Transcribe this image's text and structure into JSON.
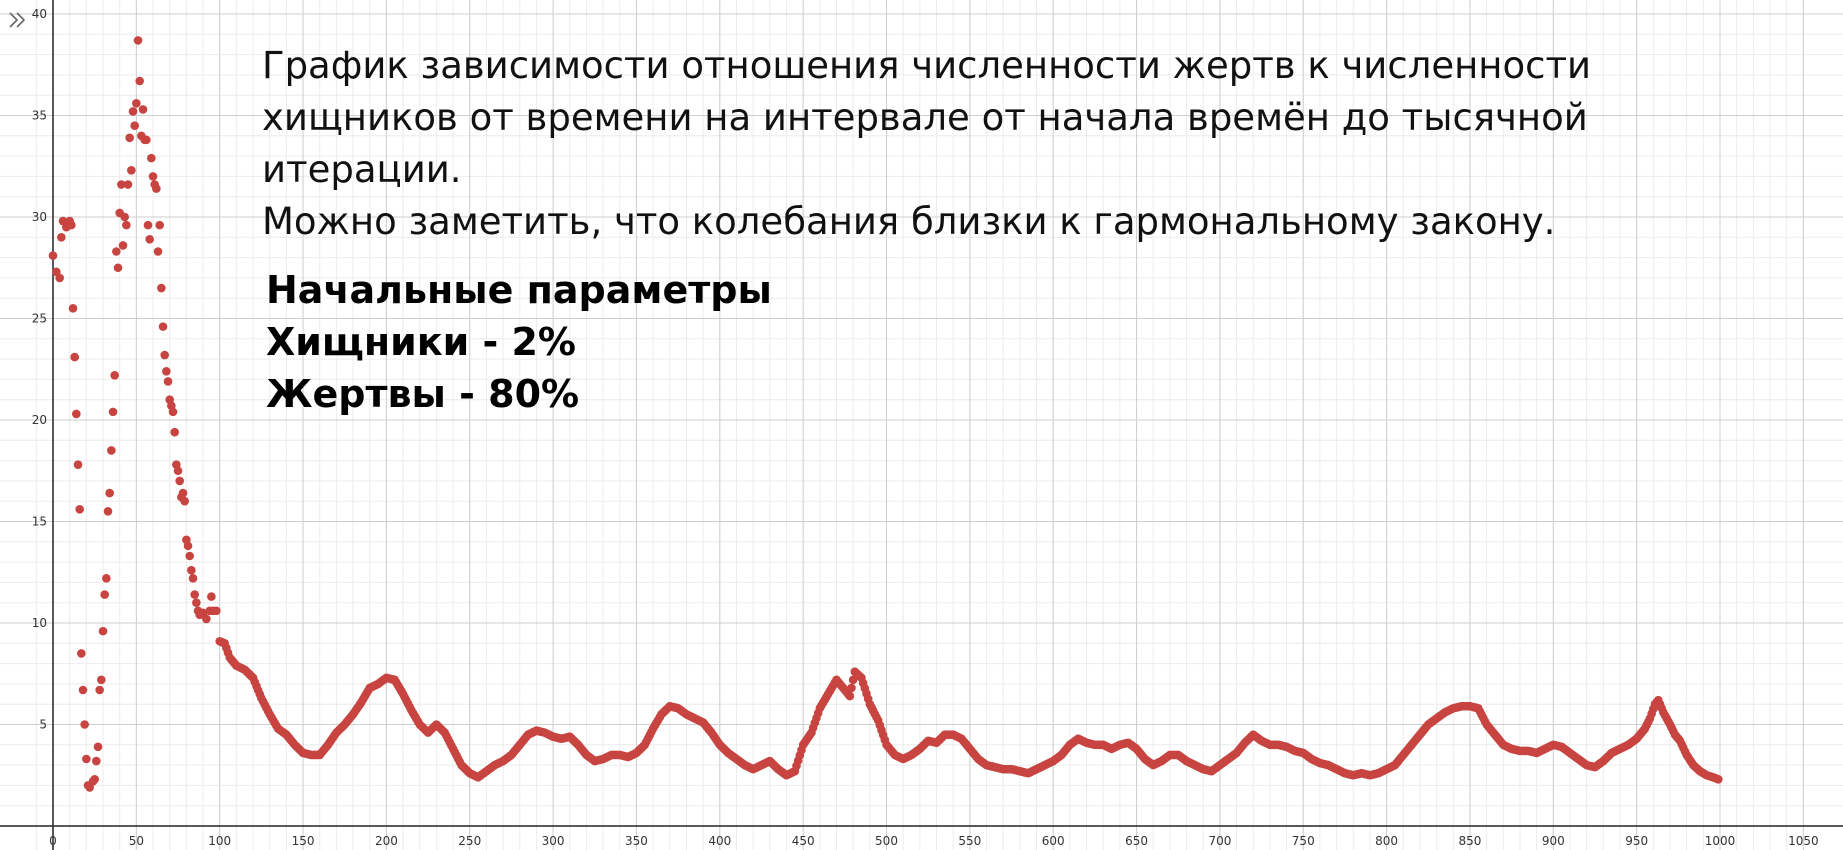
{
  "annotation": {
    "description_lines": [
      "График зависимости отношения численности жертв к численности",
      "хищников от времени на интервале от начала времён до тысячной",
      "итерации.",
      "Можно заметить, что колебания близки к гармональному закону."
    ],
    "params_title": "Начальные параметры",
    "predators": "Хищники - 2%",
    "prey": "Жертвы - 80%"
  },
  "toolbar": {
    "expand_icon": "double-chevron-right-icon"
  },
  "colors": {
    "points": "#c74440",
    "grid_major": "#cfcfcf",
    "grid_minor": "#ececec",
    "axis": "#222222"
  },
  "chart_data": {
    "type": "scatter",
    "xlim": [
      0,
      1050
    ],
    "ylim": [
      0,
      40
    ],
    "x_ticks": [
      0,
      50,
      100,
      150,
      200,
      250,
      300,
      350,
      400,
      450,
      500,
      550,
      600,
      650,
      700,
      750,
      800,
      850,
      900,
      950,
      1000,
      1050
    ],
    "y_ticks": [
      5,
      10,
      15,
      20,
      25,
      30,
      35,
      40
    ],
    "grid": true,
    "series": [
      {
        "points": [
          [
            0,
            28.1
          ],
          [
            2,
            27.3
          ],
          [
            4,
            27.0
          ],
          [
            5,
            29.0
          ],
          [
            6,
            29.8
          ],
          [
            8,
            29.5
          ],
          [
            10,
            29.8
          ],
          [
            11,
            29.6
          ],
          [
            12,
            25.5
          ],
          [
            13,
            23.1
          ],
          [
            14,
            20.3
          ],
          [
            15,
            17.8
          ],
          [
            16,
            15.6
          ],
          [
            17,
            8.5
          ],
          [
            18,
            6.7
          ],
          [
            19,
            5.0
          ],
          [
            20,
            3.3
          ],
          [
            21,
            2.0
          ],
          [
            22,
            1.9
          ],
          [
            24,
            2.2
          ],
          [
            25,
            2.3
          ],
          [
            26,
            3.2
          ],
          [
            27,
            3.9
          ],
          [
            28,
            6.7
          ],
          [
            29,
            7.2
          ],
          [
            30,
            9.6
          ],
          [
            31,
            11.4
          ],
          [
            32,
            12.2
          ],
          [
            33,
            15.5
          ],
          [
            34,
            16.4
          ],
          [
            35,
            18.5
          ],
          [
            36,
            20.4
          ],
          [
            37,
            22.2
          ],
          [
            38,
            28.3
          ],
          [
            39,
            27.5
          ],
          [
            40,
            30.2
          ],
          [
            41,
            31.6
          ],
          [
            42,
            28.6
          ],
          [
            43,
            30.0
          ],
          [
            44,
            29.6
          ],
          [
            45,
            31.6
          ],
          [
            46,
            33.9
          ],
          [
            47,
            32.3
          ],
          [
            48,
            35.2
          ],
          [
            49,
            34.5
          ],
          [
            50,
            35.6
          ],
          [
            51,
            38.7
          ],
          [
            52,
            36.7
          ],
          [
            53,
            34.0
          ],
          [
            54,
            35.3
          ],
          [
            55,
            33.8
          ],
          [
            56,
            33.8
          ],
          [
            57,
            29.6
          ],
          [
            58,
            28.9
          ],
          [
            59,
            32.9
          ],
          [
            60,
            32.0
          ],
          [
            61,
            31.6
          ],
          [
            62,
            31.4
          ],
          [
            63,
            28.3
          ],
          [
            64,
            29.6
          ],
          [
            65,
            26.5
          ],
          [
            66,
            24.6
          ],
          [
            67,
            23.2
          ],
          [
            68,
            22.4
          ],
          [
            69,
            21.9
          ],
          [
            70,
            21.0
          ],
          [
            71,
            20.7
          ],
          [
            72,
            20.4
          ],
          [
            73,
            19.4
          ],
          [
            74,
            17.8
          ],
          [
            75,
            17.5
          ],
          [
            76,
            17.0
          ],
          [
            77,
            16.2
          ],
          [
            78,
            16.4
          ],
          [
            79,
            16.0
          ],
          [
            80,
            14.1
          ],
          [
            81,
            13.8
          ],
          [
            82,
            13.3
          ],
          [
            83,
            12.6
          ],
          [
            84,
            12.2
          ],
          [
            85,
            11.4
          ],
          [
            86,
            11.0
          ],
          [
            87,
            10.6
          ],
          [
            88,
            10.4
          ],
          [
            90,
            10.5
          ],
          [
            92,
            10.2
          ],
          [
            94,
            10.6
          ],
          [
            95,
            11.3
          ],
          [
            96,
            10.6
          ],
          [
            98,
            10.6
          ],
          [
            100,
            9.1
          ],
          [
            103,
            9.0
          ],
          [
            106,
            8.3
          ],
          [
            110,
            7.9
          ],
          [
            115,
            7.7
          ],
          [
            120,
            7.3
          ],
          [
            125,
            6.3
          ],
          [
            130,
            5.5
          ],
          [
            135,
            4.8
          ],
          [
            140,
            4.5
          ],
          [
            145,
            4.0
          ],
          [
            150,
            3.6
          ],
          [
            155,
            3.5
          ],
          [
            160,
            3.5
          ],
          [
            165,
            4.0
          ],
          [
            170,
            4.6
          ],
          [
            175,
            5.0
          ],
          [
            180,
            5.5
          ],
          [
            185,
            6.1
          ],
          [
            190,
            6.8
          ],
          [
            195,
            7.0
          ],
          [
            200,
            7.3
          ],
          [
            205,
            7.2
          ],
          [
            210,
            6.5
          ],
          [
            215,
            5.7
          ],
          [
            220,
            5.0
          ],
          [
            225,
            4.6
          ],
          [
            230,
            5.0
          ],
          [
            235,
            4.6
          ],
          [
            240,
            3.8
          ],
          [
            245,
            3.0
          ],
          [
            250,
            2.6
          ],
          [
            255,
            2.4
          ],
          [
            260,
            2.7
          ],
          [
            265,
            3.0
          ],
          [
            270,
            3.2
          ],
          [
            275,
            3.5
          ],
          [
            280,
            4.0
          ],
          [
            285,
            4.5
          ],
          [
            290,
            4.7
          ],
          [
            295,
            4.6
          ],
          [
            300,
            4.4
          ],
          [
            305,
            4.3
          ],
          [
            310,
            4.4
          ],
          [
            315,
            4.0
          ],
          [
            320,
            3.5
          ],
          [
            325,
            3.2
          ],
          [
            330,
            3.3
          ],
          [
            335,
            3.5
          ],
          [
            340,
            3.5
          ],
          [
            345,
            3.4
          ],
          [
            350,
            3.6
          ],
          [
            355,
            4.0
          ],
          [
            360,
            4.8
          ],
          [
            365,
            5.5
          ],
          [
            370,
            5.9
          ],
          [
            375,
            5.8
          ],
          [
            380,
            5.5
          ],
          [
            385,
            5.3
          ],
          [
            390,
            5.1
          ],
          [
            395,
            4.6
          ],
          [
            400,
            4.0
          ],
          [
            405,
            3.6
          ],
          [
            410,
            3.3
          ],
          [
            415,
            3.0
          ],
          [
            420,
            2.8
          ],
          [
            425,
            3.0
          ],
          [
            430,
            3.2
          ],
          [
            435,
            2.8
          ],
          [
            440,
            2.5
          ],
          [
            445,
            2.7
          ],
          [
            450,
            4.0
          ],
          [
            455,
            4.6
          ],
          [
            460,
            5.8
          ],
          [
            465,
            6.5
          ],
          [
            470,
            7.2
          ],
          [
            475,
            6.7
          ],
          [
            478,
            6.4
          ],
          [
            481,
            7.6
          ],
          [
            485,
            7.3
          ],
          [
            490,
            6.0
          ],
          [
            495,
            5.2
          ],
          [
            500,
            4.0
          ],
          [
            505,
            3.5
          ],
          [
            510,
            3.3
          ],
          [
            515,
            3.5
          ],
          [
            520,
            3.8
          ],
          [
            525,
            4.2
          ],
          [
            530,
            4.1
          ],
          [
            535,
            4.5
          ],
          [
            540,
            4.5
          ],
          [
            545,
            4.3
          ],
          [
            550,
            3.8
          ],
          [
            555,
            3.3
          ],
          [
            560,
            3.0
          ],
          [
            565,
            2.9
          ],
          [
            570,
            2.8
          ],
          [
            575,
            2.8
          ],
          [
            580,
            2.7
          ],
          [
            585,
            2.6
          ],
          [
            590,
            2.8
          ],
          [
            595,
            3.0
          ],
          [
            600,
            3.2
          ],
          [
            605,
            3.5
          ],
          [
            610,
            4.0
          ],
          [
            615,
            4.3
          ],
          [
            620,
            4.1
          ],
          [
            625,
            4.0
          ],
          [
            630,
            4.0
          ],
          [
            635,
            3.8
          ],
          [
            640,
            4.0
          ],
          [
            645,
            4.1
          ],
          [
            650,
            3.8
          ],
          [
            655,
            3.3
          ],
          [
            660,
            3.0
          ],
          [
            665,
            3.2
          ],
          [
            670,
            3.5
          ],
          [
            675,
            3.5
          ],
          [
            680,
            3.2
          ],
          [
            685,
            3.0
          ],
          [
            690,
            2.8
          ],
          [
            695,
            2.7
          ],
          [
            700,
            3.0
          ],
          [
            705,
            3.3
          ],
          [
            710,
            3.6
          ],
          [
            715,
            4.1
          ],
          [
            720,
            4.5
          ],
          [
            725,
            4.2
          ],
          [
            730,
            4.0
          ],
          [
            735,
            4.0
          ],
          [
            740,
            3.9
          ],
          [
            745,
            3.7
          ],
          [
            750,
            3.6
          ],
          [
            755,
            3.3
          ],
          [
            760,
            3.1
          ],
          [
            765,
            3.0
          ],
          [
            770,
            2.8
          ],
          [
            775,
            2.6
          ],
          [
            780,
            2.5
          ],
          [
            785,
            2.6
          ],
          [
            790,
            2.5
          ],
          [
            795,
            2.6
          ],
          [
            800,
            2.8
          ],
          [
            805,
            3.0
          ],
          [
            810,
            3.5
          ],
          [
            815,
            4.0
          ],
          [
            820,
            4.5
          ],
          [
            825,
            5.0
          ],
          [
            830,
            5.3
          ],
          [
            835,
            5.6
          ],
          [
            840,
            5.8
          ],
          [
            845,
            5.9
          ],
          [
            850,
            5.9
          ],
          [
            855,
            5.8
          ],
          [
            860,
            5.0
          ],
          [
            865,
            4.5
          ],
          [
            870,
            4.0
          ],
          [
            875,
            3.8
          ],
          [
            880,
            3.7
          ],
          [
            885,
            3.7
          ],
          [
            890,
            3.6
          ],
          [
            895,
            3.8
          ],
          [
            900,
            4.0
          ],
          [
            905,
            3.9
          ],
          [
            910,
            3.6
          ],
          [
            915,
            3.3
          ],
          [
            920,
            3.0
          ],
          [
            925,
            2.9
          ],
          [
            930,
            3.2
          ],
          [
            935,
            3.6
          ],
          [
            940,
            3.8
          ],
          [
            945,
            4.0
          ],
          [
            950,
            4.3
          ],
          [
            955,
            4.8
          ],
          [
            958,
            5.3
          ],
          [
            961,
            6.0
          ],
          [
            963,
            6.2
          ],
          [
            966,
            5.6
          ],
          [
            970,
            5.0
          ],
          [
            973,
            4.5
          ],
          [
            976,
            4.2
          ],
          [
            980,
            3.5
          ],
          [
            984,
            3.0
          ],
          [
            988,
            2.7
          ],
          [
            992,
            2.5
          ],
          [
            996,
            2.4
          ],
          [
            999,
            2.3
          ]
        ]
      }
    ]
  }
}
